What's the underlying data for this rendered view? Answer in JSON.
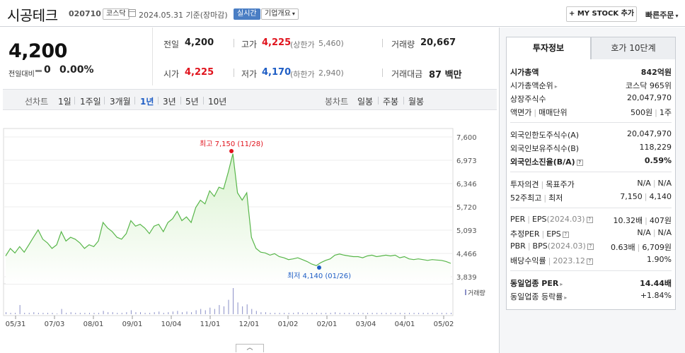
{
  "header": {
    "stock_name": "시공테크",
    "stock_code": "020710",
    "market": "코스닥",
    "date_text": "2024.05.31 기준(장마감)",
    "realtime_label": "실시간",
    "company_info_label": "기업개요",
    "mystock_label": "+ MY STOCK 추가",
    "quick_order_label": "빠른주문"
  },
  "price": {
    "current": "4,200",
    "change_label": "전일대비",
    "change_value": "0",
    "change_pct": "0.00%"
  },
  "quote": {
    "prev_close_label": "전일",
    "prev_close": "4,200",
    "high_label": "고가",
    "high": "4,225",
    "upper_limit_label": "(상한가",
    "upper_limit": "5,460)",
    "volume_label": "거래량",
    "volume": "20,667",
    "open_label": "시가",
    "open": "4,225",
    "low_label": "저가",
    "low": "4,170",
    "lower_limit_label": "(하한가",
    "lower_limit": "2,940)",
    "trade_value_label": "거래대금",
    "trade_value": "87 백만"
  },
  "periods": {
    "line_label": "선차트",
    "items": [
      "1일",
      "1주일",
      "3개월",
      "1년",
      "3년",
      "5년",
      "10년"
    ],
    "selected": "1년",
    "candle_label": "봉차트",
    "candle_items": [
      "일봉",
      "주봉",
      "월봉"
    ]
  },
  "chart_data": {
    "type": "area",
    "y_ticks": [
      "7,600",
      "6,973",
      "6,346",
      "5,720",
      "5,093",
      "4,466",
      "3,839"
    ],
    "ylim": [
      3839,
      7600
    ],
    "x_ticks": [
      "05/31",
      "07/03",
      "08/01",
      "09/01",
      "10/04",
      "11/01",
      "12/01",
      "01/02",
      "02/01",
      "03/04",
      "04/01",
      "05/02"
    ],
    "max_label": "최고 7,150 (11/28)",
    "min_label": "최저 4,140 (01/26)",
    "volume_legend": "거래량",
    "line_color": "#58b64a",
    "fill_color": "#d9f2cf",
    "values": [
      4400,
      4600,
      4480,
      4650,
      4500,
      4700,
      4900,
      5100,
      4850,
      4750,
      4600,
      4700,
      5050,
      4800,
      4900,
      4850,
      4750,
      4600,
      4700,
      4650,
      4800,
      5300,
      5150,
      5050,
      4900,
      4850,
      5000,
      5350,
      5200,
      5250,
      5150,
      5000,
      5200,
      5250,
      5050,
      5300,
      5400,
      5600,
      5350,
      5450,
      5300,
      5700,
      5900,
      5800,
      6150,
      6000,
      6250,
      6200,
      6650,
      7150,
      6100,
      5900,
      6100,
      4900,
      4600,
      4500,
      4480,
      4420,
      4460,
      4380,
      4350,
      4300,
      4320,
      4350,
      4300,
      4250,
      4180,
      4140,
      4220,
      4280,
      4320,
      4420,
      4450,
      4420,
      4400,
      4380,
      4380,
      4350,
      4400,
      4420,
      4380,
      4400,
      4420,
      4400,
      4420,
      4350,
      4380,
      4320,
      4300,
      4320,
      4300,
      4280,
      4300,
      4290,
      4280,
      4250,
      4200
    ],
    "volumes": [
      3,
      2,
      2,
      14,
      2,
      2,
      3,
      2,
      2,
      2,
      2,
      1,
      8,
      2,
      3,
      2,
      2,
      2,
      2,
      2,
      2,
      5,
      3,
      3,
      2,
      2,
      3,
      6,
      3,
      3,
      2,
      2,
      3,
      4,
      2,
      3,
      4,
      5,
      3,
      4,
      3,
      6,
      8,
      6,
      10,
      8,
      14,
      12,
      22,
      40,
      18,
      12,
      15,
      8,
      5,
      3,
      3,
      2,
      2,
      2,
      2,
      2,
      2,
      3,
      2,
      2,
      2,
      2,
      2,
      2,
      2,
      3,
      2,
      2,
      2,
      2,
      2,
      2,
      2,
      2,
      2,
      2,
      2,
      2,
      2,
      2,
      2,
      2,
      2,
      2,
      2,
      2,
      2,
      2,
      2,
      2,
      2
    ]
  },
  "panel": {
    "tab_active": "투자정보",
    "tab_inactive": "호가 10단계",
    "market_cap_label": "시가총액",
    "market_cap": "842억원",
    "market_cap_rank_label": "시가총액순위",
    "market_cap_rank": "코스닥 965위",
    "shares_label": "상장주식수",
    "shares": "20,047,970",
    "par_label": "액면가",
    "trade_unit_label": "매매단위",
    "par": "500원",
    "trade_unit": "1주",
    "foreign_limit_label": "외국인한도주식수(A)",
    "foreign_limit": "20,047,970",
    "foreign_hold_label": "외국인보유주식수(B)",
    "foreign_hold": "118,229",
    "foreign_ratio_label": "외국인소진율(B/A)",
    "foreign_ratio": "0.59%",
    "opinion_label": "투자의견",
    "target_label": "목표주가",
    "opinion": "N/A",
    "target": "N/A",
    "w52_label": "52주최고",
    "w52_low_label": "최저",
    "w52_high": "7,150",
    "w52_low": "4,140",
    "per_label": "PER",
    "eps_label": "EPS",
    "eps_period": "(2024.03)",
    "per": "10.32배",
    "eps": "407원",
    "est_per_label": "추정PER",
    "est_eps_label": "EPS",
    "est_per": "N/A",
    "est_eps": "N/A",
    "pbr_label": "PBR",
    "bps_label": "BPS",
    "bps_period": "(2024.03)",
    "pbr": "0.63배",
    "bps": "6,709원",
    "div_label": "배당수익률",
    "div_period": "2023.12",
    "div": "1.90%",
    "ind_per_label": "동일업종 PER",
    "ind_per": "14.44배",
    "ind_chg_label": "동일업종 등락률",
    "ind_chg": "+1.84%"
  }
}
